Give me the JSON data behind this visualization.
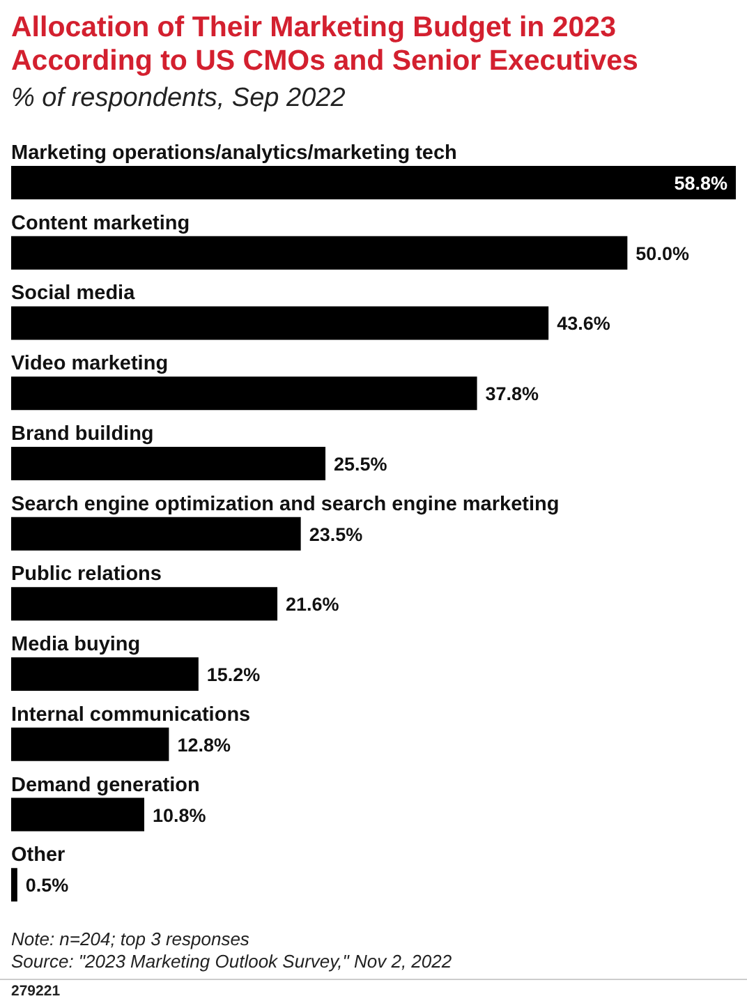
{
  "chart_data": {
    "type": "bar",
    "orientation": "horizontal",
    "title": "Allocation of Their Marketing Budget in 2023 According to US CMOs and Senior Executives",
    "subtitle": "% of respondents, Sep 2022",
    "categories": [
      "Marketing operations/analytics/marketing tech",
      "Content marketing",
      "Social media",
      "Video marketing",
      "Brand building",
      "Search engine optimization and search engine marketing",
      "Public relations",
      "Media buying",
      "Internal communications",
      "Demand generation",
      "Other"
    ],
    "values": [
      58.8,
      50.0,
      43.6,
      37.8,
      25.5,
      23.5,
      21.6,
      15.2,
      12.8,
      10.8,
      0.5
    ],
    "value_labels": [
      "58.8%",
      "50.0%",
      "43.6%",
      "37.8%",
      "25.5%",
      "23.5%",
      "21.6%",
      "15.2%",
      "12.8%",
      "10.8%",
      "0.5%"
    ],
    "color": "#000000",
    "annotations": [
      "Note: n=204; top 3 responses",
      "Source: \"2023 Marketing Outlook Survey,\" Nov 2, 2022",
      "279221"
    ]
  }
}
